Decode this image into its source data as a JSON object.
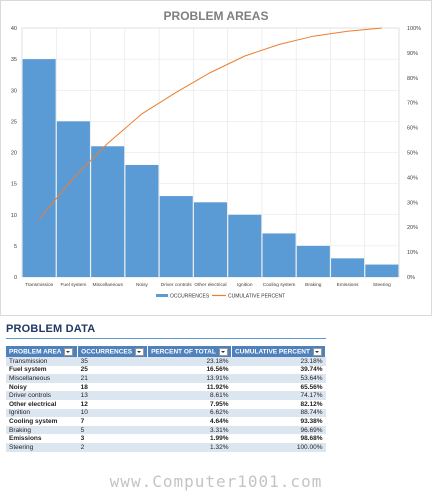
{
  "chart_data": {
    "type": "bar",
    "title": "PROBLEM AREAS",
    "categories": [
      "Transmission",
      "Fuel system",
      "Miscellaneous",
      "Noisy",
      "Driver controls",
      "Other electrical",
      "Ignition",
      "Cooling system",
      "Braking",
      "Emissions",
      "Steering"
    ],
    "series": [
      {
        "name": "OCCURRENCES",
        "type": "bar",
        "axis": "left",
        "color": "#5b9bd5",
        "values": [
          35,
          25,
          21,
          18,
          13,
          12,
          10,
          7,
          5,
          3,
          2
        ]
      },
      {
        "name": "CUMULATIVE PERCENT",
        "type": "line",
        "axis": "right",
        "color": "#ed7d31",
        "values": [
          23.18,
          39.74,
          53.64,
          65.56,
          74.17,
          82.12,
          88.74,
          93.38,
          96.69,
          98.68,
          100
        ]
      }
    ],
    "ylim": [
      0,
      40
    ],
    "yticks": [
      0,
      5,
      10,
      15,
      20,
      25,
      30,
      35,
      40
    ],
    "y2lim": [
      0,
      100
    ],
    "y2ticks": [
      "0%",
      "10%",
      "20%",
      "30%",
      "40%",
      "50%",
      "60%",
      "70%",
      "80%",
      "90%",
      "100%"
    ],
    "grid": true,
    "legend": "bottom"
  },
  "table": {
    "title": "PROBLEM DATA",
    "headers": [
      "PROBLEM AREA",
      "OCCURRENCES",
      "PERCENT OF TOTAL",
      "CUMULATIVE PERCENT"
    ],
    "rows": [
      [
        "Transmission",
        "35",
        "23.18%",
        "23.18%"
      ],
      [
        "Fuel system",
        "25",
        "16.56%",
        "39.74%"
      ],
      [
        "Miscellaneous",
        "21",
        "13.91%",
        "53.64%"
      ],
      [
        "Noisy",
        "18",
        "11.92%",
        "65.56%"
      ],
      [
        "Driver controls",
        "13",
        "8.61%",
        "74.17%"
      ],
      [
        "Other electrical",
        "12",
        "7.95%",
        "82.12%"
      ],
      [
        "Ignition",
        "10",
        "6.62%",
        "88.74%"
      ],
      [
        "Cooling system",
        "7",
        "4.64%",
        "93.38%"
      ],
      [
        "Braking",
        "5",
        "3.31%",
        "96.69%"
      ],
      [
        "Emissions",
        "3",
        "1.99%",
        "98.68%"
      ],
      [
        "Steering",
        "2",
        "1.32%",
        "100.00%"
      ]
    ]
  },
  "watermark": "www.Computer1001.com"
}
